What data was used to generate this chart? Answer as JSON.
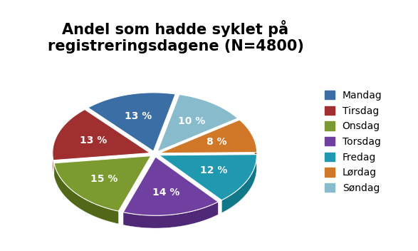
{
  "title": "Andel som hadde syklet på\nregistreringsdagene (N=4800)",
  "labels": [
    "Mandag",
    "Tirsdag",
    "Onsdag",
    "Torsdag",
    "Fredag",
    "Lørdag",
    "Søndag"
  ],
  "values": [
    13,
    13,
    15,
    14,
    12,
    8,
    10
  ],
  "colors_top": [
    "#3A6EA5",
    "#A03030",
    "#7B9A30",
    "#7040A0",
    "#2098B0",
    "#D07828",
    "#88BBCC"
  ],
  "colors_side": [
    "#2A5080",
    "#782020",
    "#506818",
    "#502878",
    "#107888",
    "#A05010",
    "#6090A0"
  ],
  "explode": [
    0.05,
    0.05,
    0.05,
    0.05,
    0.05,
    0.05,
    0.05
  ],
  "title_fontsize": 15,
  "label_fontsize": 10,
  "legend_fontsize": 10,
  "startangle": 77,
  "legend_labels": [
    "Mandag",
    "Tirsdag",
    "Onsdag",
    "Torsdag",
    "Fredag",
    "Lørdag",
    "Søndag"
  ]
}
